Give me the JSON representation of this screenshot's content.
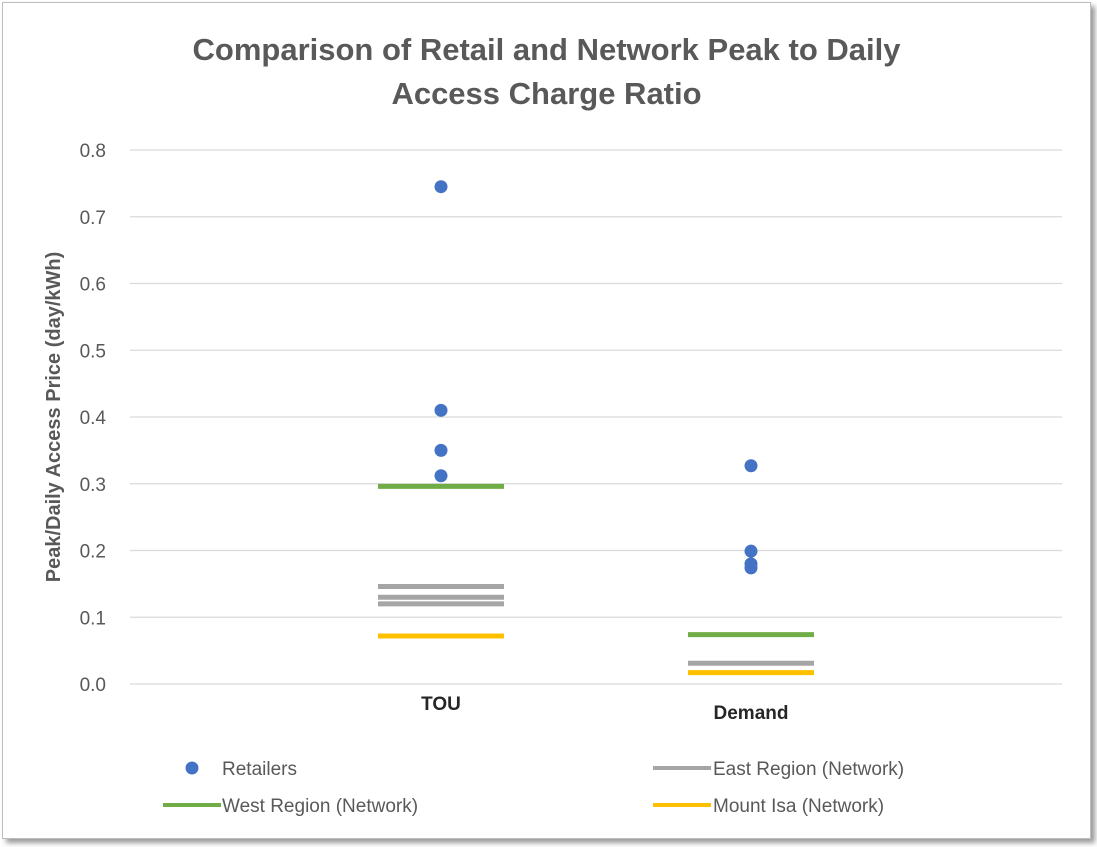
{
  "chart_data": {
    "type": "scatter",
    "title_lines": [
      "Comparison of Retail and Network Peak to Daily",
      "Access Charge Ratio"
    ],
    "xlabel": "",
    "ylabel": "Peak/Daily Access Price (day/kWh)",
    "categories": [
      "TOU",
      "Demand"
    ],
    "ylim": [
      0,
      0.8
    ],
    "yticks": [
      "0.0",
      "0.1",
      "0.2",
      "0.3",
      "0.4",
      "0.5",
      "0.6",
      "0.7",
      "0.8"
    ],
    "grid": true,
    "legend_position": "bottom",
    "series": [
      {
        "name": "Retailers",
        "marker": "dot",
        "color": "#4472c4",
        "points": [
          {
            "category": "TOU",
            "y": 0.745
          },
          {
            "category": "TOU",
            "y": 0.41
          },
          {
            "category": "TOU",
            "y": 0.35
          },
          {
            "category": "TOU",
            "y": 0.312
          },
          {
            "category": "Demand",
            "y": 0.327
          },
          {
            "category": "Demand",
            "y": 0.199
          },
          {
            "category": "Demand",
            "y": 0.18
          },
          {
            "category": "Demand",
            "y": 0.174
          }
        ]
      },
      {
        "name": "East Region (Network)",
        "marker": "line",
        "color": "#a5a5a5",
        "points": [
          {
            "category": "TOU",
            "y": 0.146
          },
          {
            "category": "TOU",
            "y": 0.13
          },
          {
            "category": "TOU",
            "y": 0.12
          },
          {
            "category": "Demand",
            "y": 0.031
          }
        ]
      },
      {
        "name": "West Region (Network)",
        "marker": "line",
        "color": "#70ad47",
        "points": [
          {
            "category": "TOU",
            "y": 0.296
          },
          {
            "category": "Demand",
            "y": 0.074
          }
        ]
      },
      {
        "name": "Mount Isa (Network)",
        "marker": "line",
        "color": "#ffc000",
        "points": [
          {
            "category": "TOU",
            "y": 0.072
          },
          {
            "category": "Demand",
            "y": 0.017
          }
        ]
      }
    ]
  }
}
